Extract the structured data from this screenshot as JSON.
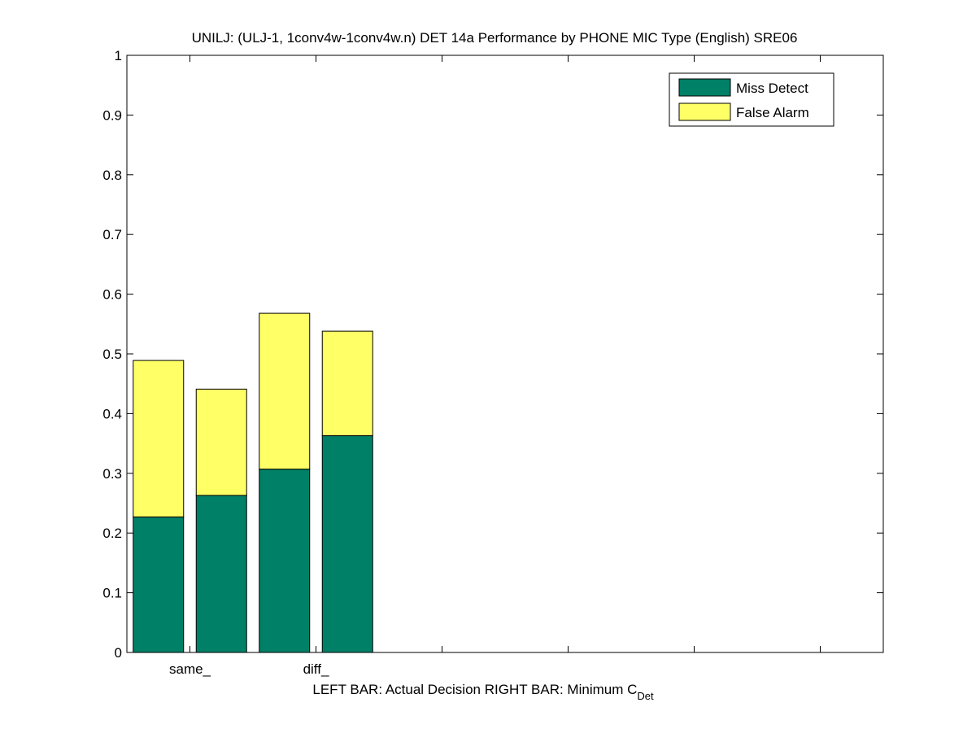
{
  "chart_data": {
    "type": "bar",
    "stacked": true,
    "title": "UNILJ: (ULJ-1, 1conv4w-1conv4w.n) DET 14a Performance by PHONE MIC Type (English) SRE06",
    "xlabel_main": "LEFT BAR: Actual Decision     RIGHT BAR: Minimum C",
    "xlabel_sub": "Det",
    "categories": [
      "same_",
      "diff_"
    ],
    "bars_per_category": 2,
    "ylim": [
      0,
      1
    ],
    "yticks": [
      "0",
      "0.1",
      "0.2",
      "0.3",
      "0.4",
      "0.5",
      "0.6",
      "0.7",
      "0.8",
      "0.9",
      "1"
    ],
    "series": [
      {
        "name": "Miss Detect",
        "color": "#008066",
        "values": [
          [
            0.227,
            0.263
          ],
          [
            0.307,
            0.363
          ]
        ]
      },
      {
        "name": "False Alarm",
        "color": "#ffff66",
        "values": [
          [
            0.262,
            0.178
          ],
          [
            0.261,
            0.175
          ]
        ]
      }
    ],
    "legend": "top-right",
    "grid": false
  }
}
